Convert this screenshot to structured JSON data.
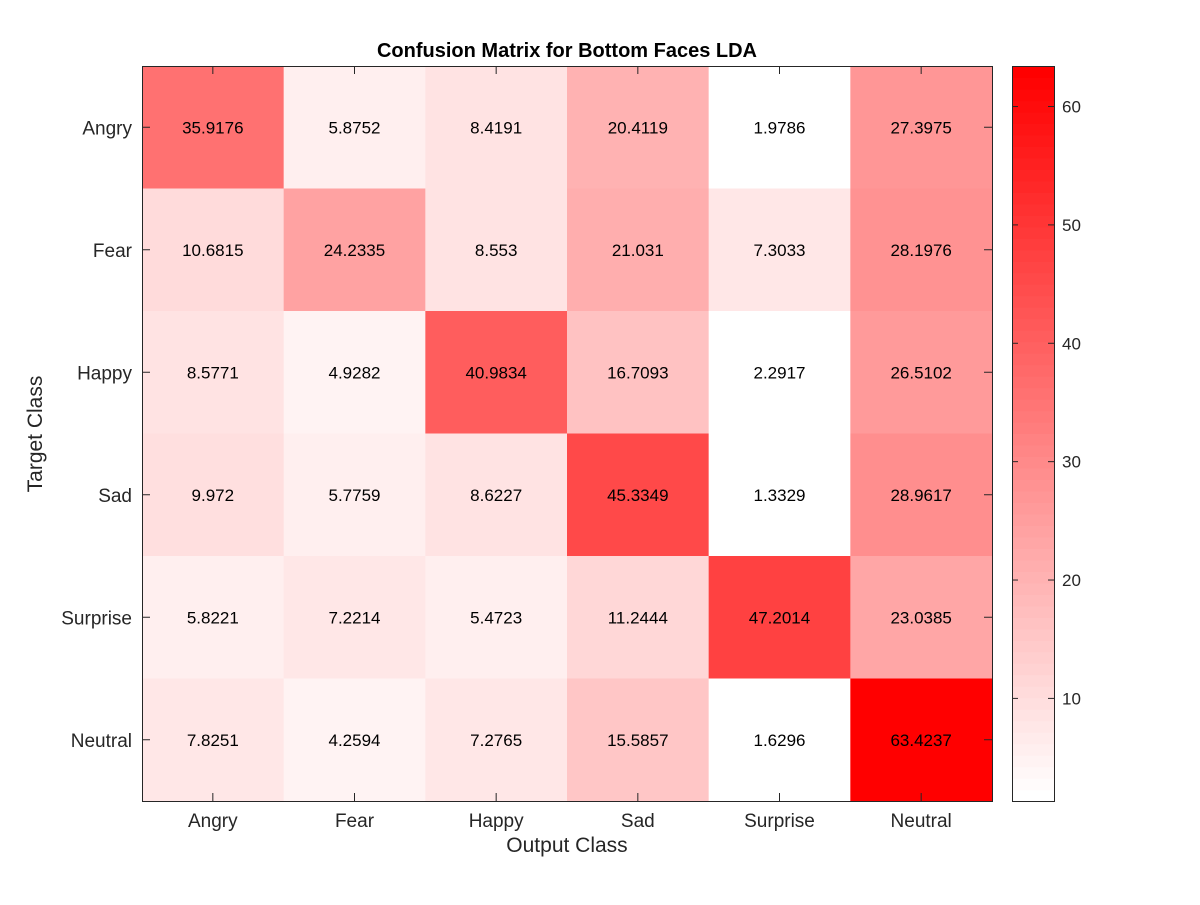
{
  "chart_data": {
    "type": "heatmap",
    "title": "Confusion Matrix for Bottom Faces LDA",
    "xlabel": "Output Class",
    "ylabel": "Target Class",
    "x_categories": [
      "Angry",
      "Fear",
      "Happy",
      "Sad",
      "Surprise",
      "Neutral"
    ],
    "y_categories": [
      "Angry",
      "Fear",
      "Happy",
      "Sad",
      "Surprise",
      "Neutral"
    ],
    "values": [
      [
        35.9176,
        5.8752,
        8.4191,
        20.4119,
        1.9786,
        27.3975
      ],
      [
        10.6815,
        24.2335,
        8.553,
        21.031,
        7.3033,
        28.1976
      ],
      [
        8.5771,
        4.9282,
        40.9834,
        16.7093,
        2.2917,
        26.5102
      ],
      [
        9.972,
        5.7759,
        8.6227,
        45.3349,
        1.3329,
        28.9617
      ],
      [
        5.8221,
        7.2214,
        5.4723,
        11.2444,
        47.2014,
        23.0385
      ],
      [
        7.8251,
        4.2594,
        7.2765,
        15.5857,
        1.6296,
        63.4237
      ]
    ],
    "value_labels": [
      [
        "35.9176",
        "5.8752",
        "8.4191",
        "20.4119",
        "1.9786",
        "27.3975"
      ],
      [
        "10.6815",
        "24.2335",
        "8.553",
        "21.031",
        "7.3033",
        "28.1976"
      ],
      [
        "8.5771",
        "4.9282",
        "40.9834",
        "16.7093",
        "2.2917",
        "26.5102"
      ],
      [
        "9.972",
        "5.7759",
        "8.6227",
        "45.3349",
        "1.3329",
        "28.9617"
      ],
      [
        "5.8221",
        "7.2214",
        "5.4723",
        "11.2444",
        "47.2014",
        "23.0385"
      ],
      [
        "7.8251",
        "4.2594",
        "7.2765",
        "15.5857",
        "1.6296",
        "63.4237"
      ]
    ],
    "colorbar": {
      "range": [
        1.3329,
        63.4237
      ],
      "ticks": [
        10,
        20,
        30,
        40,
        50,
        60
      ],
      "levels": 64,
      "low_color": "#ffffff",
      "high_color": "#ff0000"
    },
    "grid": false
  }
}
